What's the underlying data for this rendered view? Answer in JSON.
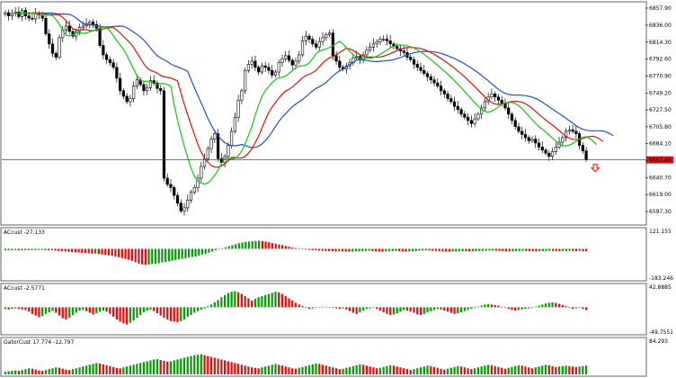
{
  "colors": {
    "background": "#ffffff",
    "candle": "#000000",
    "alligator_jaw": "#1f4fd8",
    "alligator_teeth": "#e01010",
    "alligator_lips": "#17c217",
    "bar_up": "#0a9a0a",
    "bar_down": "#e01010",
    "price_line": "#e01010",
    "grid": "#000000"
  },
  "chart_data": [
    {
      "type": "candlestick",
      "title": "",
      "price_axis": {
        "ylim": [
          6580,
          6866
        ],
        "tick_labels": [
          "6857.90",
          "6836.00",
          "6814.30",
          "6792.60",
          "6770.90",
          "6749.20",
          "6727.50",
          "6705.80",
          "6684.10",
          "6662.40",
          "6640.70",
          "6619.00",
          "6597.30"
        ],
        "ticks": [
          6857.9,
          6836.0,
          6814.3,
          6792.6,
          6770.9,
          6749.2,
          6727.5,
          6705.8,
          6684.1,
          6662.4,
          6640.7,
          6619.0,
          6597.3
        ]
      },
      "current_price": {
        "label": "6663.48",
        "value": 6663.48
      },
      "close": [
        6852,
        6848,
        6851,
        6853,
        6847,
        6855,
        6848,
        6845,
        6844,
        6851,
        6849,
        6845,
        6825,
        6812,
        6800,
        6795,
        6820,
        6830,
        6835,
        6828,
        6822,
        6828,
        6833,
        6835,
        6838,
        6840,
        6837,
        6832,
        6810,
        6798,
        6792,
        6788,
        6782,
        6768,
        6752,
        6745,
        6738,
        6742,
        6758,
        6766,
        6760,
        6752,
        6756,
        6765,
        6762,
        6755,
        6752,
        6640,
        6632,
        6628,
        6618,
        6608,
        6598,
        6602,
        6612,
        6622,
        6628,
        6640,
        6655,
        6665,
        6678,
        6690,
        6697,
        6665,
        6660,
        6668,
        6682,
        6700,
        6718,
        6740,
        6752,
        6778,
        6786,
        6790,
        6782,
        6776,
        6784,
        6782,
        6778,
        6772,
        6776,
        6788,
        6793,
        6797,
        6791,
        6785,
        6790,
        6798,
        6816,
        6822,
        6818,
        6812,
        6808,
        6815,
        6820,
        6824,
        6826,
        6797,
        6790,
        6782,
        6780,
        6784,
        6788,
        6794,
        6796,
        6792,
        6798,
        6804,
        6808,
        6812,
        6815,
        6818,
        6818,
        6816,
        6812,
        6809,
        6806,
        6803,
        6801,
        6795,
        6792,
        6786,
        6782,
        6778,
        6774,
        6770,
        6766,
        6762,
        6758,
        6752,
        6748,
        6742,
        6738,
        6732,
        6728,
        6722,
        6718,
        6714,
        6710,
        6716,
        6722,
        6730,
        6738,
        6744,
        6748,
        6744,
        6740,
        6736,
        6730,
        6722,
        6714,
        6706,
        6700,
        6696,
        6692,
        6688,
        6690,
        6685,
        6680,
        6676,
        6672,
        6668,
        6674,
        6680,
        6686,
        6692,
        6700,
        6702,
        6700,
        6697,
        6682,
        6675,
        6664
      ],
      "last_close": 6663.48,
      "last_close_note": "bearish fractal arrow below last bar"
    },
    {
      "type": "bar",
      "title": "ACcust -27.133",
      "axis_labels": [
        "121.155",
        "-183.246"
      ],
      "ylim": [
        -183.246,
        121.155
      ],
      "values": [
        -9,
        -9,
        -8,
        -7,
        -9,
        -9,
        -8,
        -8,
        -7,
        -7,
        -6,
        -6,
        -7,
        -8,
        -8,
        -10,
        -12,
        -13,
        -15,
        -17,
        -19,
        -20,
        -21,
        -23,
        -24,
        -26,
        -28,
        -28,
        -30,
        -32,
        -34,
        -37,
        -40,
        -44,
        -48,
        -53,
        -57,
        -63,
        -70,
        -77,
        -84,
        -89,
        -92,
        -90,
        -87,
        -86,
        -82,
        -78,
        -75,
        -72,
        -68,
        -64,
        -60,
        -57,
        -54,
        -50,
        -46,
        -44,
        -38,
        -33,
        -28,
        -22,
        -15,
        -8,
        -3,
        3,
        9,
        15,
        20,
        26,
        32,
        36,
        40,
        42,
        44,
        45,
        47,
        45,
        42,
        38,
        33,
        29,
        25,
        21,
        16,
        12,
        8,
        5,
        2,
        -1,
        -4,
        -6,
        -8,
        -9,
        -10,
        -11,
        -12,
        -13,
        -14,
        -15,
        -14,
        -15,
        -16,
        -17,
        -16,
        -15,
        -14,
        -13,
        -12,
        -11,
        -13,
        -15,
        -16,
        -17,
        -15,
        -14,
        -13,
        -12,
        -13,
        -15,
        -16,
        -15,
        -14,
        -13,
        -11,
        -10,
        -9,
        -10,
        -11,
        -12,
        -14,
        -15,
        -16,
        -17,
        -16,
        -15,
        -14,
        -13,
        -14,
        -15,
        -14,
        -13,
        -12,
        -12,
        -11,
        -10,
        -10,
        -11,
        -12,
        -13,
        -14,
        -15,
        -14,
        -13,
        -12,
        -11,
        -12,
        -13,
        -14,
        -15,
        -14,
        -13,
        -12,
        -11,
        -12,
        -13,
        -14,
        -13,
        -12,
        -11,
        -12,
        -13,
        -12,
        -13,
        -14
      ]
    },
    {
      "type": "bar",
      "title": "ACcust -2.5771",
      "axis_labels": [
        "42.8885",
        "-49.7551"
      ],
      "ylim": [
        -49.7551,
        42.8885
      ],
      "values": [
        -3,
        -4,
        -3,
        -2,
        -3,
        -4,
        -5,
        -8,
        -12,
        -15,
        -18,
        -16,
        -12,
        -9,
        -7,
        -10,
        -15,
        -20,
        -22,
        -19,
        -14,
        -10,
        -6,
        -5,
        -7,
        -10,
        -13,
        -11,
        -8,
        -6,
        -8,
        -12,
        -17,
        -22,
        -26,
        -29,
        -31,
        -28,
        -24,
        -19,
        -14,
        -9,
        -6,
        -4,
        -7,
        -11,
        -15,
        -19,
        -22,
        -25,
        -26,
        -27,
        -25,
        -22,
        -17,
        -14,
        -10,
        -7,
        -4,
        -2,
        2,
        5,
        9,
        13,
        18,
        22,
        26,
        28,
        29,
        27,
        24,
        20,
        16,
        12,
        15,
        18,
        20,
        22,
        24,
        26,
        28,
        27,
        24,
        20,
        16,
        12,
        8,
        5,
        2,
        -1,
        -3,
        -2,
        -1,
        0,
        1,
        1,
        0,
        -1,
        -2,
        -3,
        -2,
        -4,
        -7,
        -10,
        -12,
        -9,
        -6,
        -3,
        -2,
        -1,
        -3,
        -6,
        -9,
        -12,
        -14,
        -13,
        -11,
        -8,
        -5,
        -6,
        -8,
        -10,
        -13,
        -14,
        -12,
        -9,
        -7,
        -5,
        -3,
        -4,
        -6,
        -8,
        -10,
        -12,
        -11,
        -9,
        -7,
        -5,
        -3,
        -1,
        1,
        3,
        5,
        6,
        5,
        4,
        3,
        1,
        -1,
        -3,
        -5,
        -6,
        -5,
        -4,
        -3,
        -2,
        -1,
        1,
        3,
        5,
        7,
        8,
        9,
        8,
        6,
        4,
        2,
        -1,
        -3,
        -2,
        -1,
        -3,
        -5
      ]
    },
    {
      "type": "bar",
      "title": "GatorCust 17.774 -12.797",
      "axis_labels": [
        "84.293"
      ],
      "ylim": [
        0,
        84.293
      ],
      "values": [
        6,
        7,
        8,
        9,
        8,
        10,
        12,
        14,
        13,
        11,
        9,
        8,
        10,
        12,
        14,
        16,
        15,
        13,
        11,
        10,
        12,
        14,
        16,
        18,
        20,
        22,
        24,
        26,
        25,
        23,
        21,
        19,
        17,
        15,
        14,
        16,
        18,
        20,
        22,
        24,
        26,
        28,
        30,
        32,
        34,
        35,
        33,
        31,
        29,
        30,
        32,
        34,
        36,
        38,
        40,
        42,
        44,
        45,
        46,
        44,
        42,
        40,
        38,
        36,
        34,
        32,
        30,
        28,
        26,
        24,
        22,
        20,
        18,
        16,
        15,
        14,
        16,
        18,
        20,
        22,
        24,
        22,
        20,
        18,
        16,
        14,
        13,
        15,
        17,
        19,
        21,
        23,
        25,
        24,
        22,
        20,
        18,
        16,
        14,
        12,
        13,
        15,
        17,
        19,
        21,
        23,
        22,
        20,
        18,
        16,
        14,
        15,
        17,
        19,
        21,
        20,
        18,
        16,
        14,
        12,
        10,
        12,
        14,
        16,
        18,
        20,
        19,
        17,
        15,
        13,
        11,
        13,
        15,
        17,
        19,
        18,
        16,
        14,
        12,
        14,
        16,
        18,
        20,
        22,
        21,
        19,
        17,
        15,
        13,
        15,
        17,
        19,
        21,
        20,
        18,
        16,
        14,
        16,
        18,
        20,
        22,
        21,
        19,
        17,
        18,
        19,
        20,
        19,
        18,
        17,
        18,
        19,
        20
      ]
    }
  ]
}
